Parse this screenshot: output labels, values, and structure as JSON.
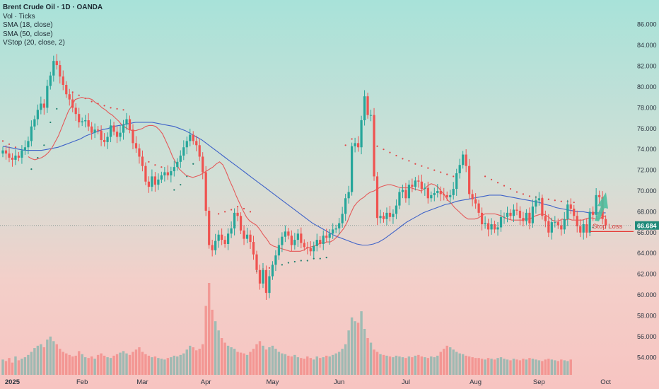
{
  "legend": {
    "title": "Brent Crude Oil · 1D · OANDA",
    "volume": "Vol · Ticks",
    "sma18": "SMA (18, close)",
    "sma50": "SMA (50, close)",
    "vstop": "VStop (20, close, 2)"
  },
  "colors": {
    "up": "#26a69a",
    "down": "#ef5350",
    "sma18": "#e45a5a",
    "sma50": "#3f63c8",
    "vstop_up": "#1e7f6e",
    "vstop_down": "#e04848",
    "stop_line": "#e53935",
    "price_badge": "#1f8a7a",
    "arrow": "#4dbfa0"
  },
  "chart_data": {
    "type": "candlestick",
    "symbol": "Brent Crude Oil",
    "timeframe": "1D",
    "exchange": "OANDA",
    "ylim": [
      53,
      87
    ],
    "y_ticks": [
      "54.000",
      "56.000",
      "58.000",
      "60.000",
      "62.000",
      "64.000",
      "66.000",
      "68.000",
      "70.000",
      "72.000",
      "74.000",
      "76.000",
      "78.000",
      "80.000",
      "82.000",
      "84.000",
      "86.000"
    ],
    "x_ticks": [
      {
        "label": "2025",
        "index": 3,
        "bold": true
      },
      {
        "label": "Feb",
        "index": 25
      },
      {
        "label": "Mar",
        "index": 44
      },
      {
        "label": "Apr",
        "index": 64
      },
      {
        "label": "May",
        "index": 85
      },
      {
        "label": "Jun",
        "index": 106
      },
      {
        "label": "Jul",
        "index": 127
      },
      {
        "label": "Aug",
        "index": 149
      },
      {
        "label": "Sep",
        "index": 169
      },
      {
        "label": "Oct",
        "index": 190
      }
    ],
    "last_price": "66.684",
    "stop_loss_label": "Stop Loss",
    "stop_loss_price": 66.1,
    "closes": [
      73.9,
      73.6,
      73.2,
      73.0,
      73.4,
      73.2,
      73.9,
      74.2,
      74.8,
      76.2,
      76.9,
      77.8,
      78.4,
      78.0,
      80.1,
      81.1,
      82.5,
      82.1,
      81.0,
      80.2,
      79.3,
      78.8,
      78.0,
      77.4,
      76.6,
      76.7,
      76.8,
      76.2,
      75.6,
      75.9,
      75.8,
      74.9,
      74.7,
      75.2,
      76.3,
      75.7,
      75.2,
      75.6,
      76.4,
      76.9,
      75.9,
      74.6,
      74.1,
      73.3,
      72.4,
      70.9,
      70.4,
      71.4,
      70.6,
      71.1,
      71.5,
      71.8,
      71.5,
      71.9,
      72.3,
      72.8,
      73.4,
      74.2,
      74.8,
      75.4,
      74.8,
      74.4,
      73.3,
      71.8,
      68.1,
      64.8,
      64.3,
      65.2,
      65.8,
      65.3,
      64.9,
      65.9,
      66.4,
      67.9,
      67.6,
      66.2,
      65.4,
      65.8,
      65.1,
      63.9,
      62.4,
      61.1,
      62.4,
      60.2,
      61.8,
      62.9,
      63.8,
      64.8,
      65.6,
      66.1,
      65.7,
      64.8,
      65.3,
      65.9,
      65.0,
      64.6,
      64.5,
      64.2,
      64.7,
      65.3,
      64.9,
      65.7,
      65.5,
      65.9,
      66.3,
      66.4,
      66.9,
      67.8,
      69.3,
      69.9,
      74.3,
      74.6,
      74.2,
      76.8,
      79.1,
      77.3,
      77.3,
      71.4,
      67.4,
      67.6,
      67.3,
      67.9,
      67.5,
      67.8,
      68.6,
      69.9,
      70.1,
      69.3,
      70.6,
      70.4,
      71.0,
      70.9,
      70.2,
      70.3,
      69.3,
      69.6,
      69.8,
      70.0,
      69.7,
      69.6,
      69.4,
      69.6,
      70.2,
      71.7,
      72.5,
      73.5,
      72.4,
      69.7,
      69.2,
      68.8,
      67.9,
      66.8,
      66.9,
      66.3,
      66.8,
      66.3,
      66.5,
      67.5,
      67.5,
      67.9,
      67.6,
      68.2,
      68.1,
      67.4,
      67.1,
      67.9,
      66.9,
      68.5,
      69.1,
      69.3,
      67.6,
      67.1,
      66.0,
      67.0,
      67.0,
      66.7,
      66.3,
      67.3,
      68.7,
      68.3,
      67.6,
      66.6,
      66.0,
      66.8,
      66.0,
      68.0,
      67.7,
      69.6,
      69.4,
      67.3,
      66.7
    ],
    "x_dates_note": "",
    "sma18": [
      73.3,
      73.1,
      73.0,
      73.1,
      73.2,
      73.4,
      73.7,
      74.1,
      74.7,
      75.3,
      76.1,
      76.9,
      77.7,
      78.2,
      78.8,
      78.9,
      79.0,
      78.9,
      78.9,
      78.8,
      78.5,
      78.3,
      78.0,
      77.8,
      77.5,
      77.3,
      77.0,
      76.7,
      76.3,
      76.1,
      75.9,
      75.8,
      75.8,
      75.9,
      76.0,
      76.2,
      76.3,
      76.3,
      76.2,
      75.9,
      75.5,
      74.8,
      74.1,
      73.3,
      72.7,
      72.1,
      71.8,
      71.5,
      71.4,
      71.3,
      71.4,
      71.5,
      71.7,
      71.9,
      72.1,
      72.3,
      72.6,
      72.8,
      72.5,
      71.8,
      71.0,
      70.3,
      69.5,
      68.8,
      68.1,
      67.5,
      67.1,
      66.9,
      66.7,
      66.3,
      65.8,
      65.4,
      64.9,
      64.7,
      64.6,
      64.5,
      64.4,
      64.3,
      64.2,
      64.2,
      64.2,
      64.2,
      64.3,
      64.5,
      64.6,
      64.7,
      64.8,
      65.0,
      65.0,
      65.1,
      65.1,
      65.3,
      65.6,
      66.0,
      66.4,
      67.0,
      67.8,
      68.5,
      68.9,
      69.2,
      69.4,
      69.7,
      69.9,
      70.0,
      70.2,
      70.4,
      70.5,
      70.6,
      70.6,
      70.5,
      70.4,
      70.3,
      70.3,
      70.3,
      70.3,
      70.2,
      70.1,
      70.0,
      70.2,
      70.5,
      70.7,
      70.6,
      70.4,
      70.0,
      69.6,
      69.1,
      68.8,
      68.4,
      68.1,
      67.8,
      67.5,
      67.3,
      67.3,
      67.3,
      67.4,
      67.6,
      67.8,
      67.8,
      67.8,
      67.8,
      67.7,
      67.6,
      67.4,
      67.3,
      67.2,
      67.2,
      67.2,
      67.2,
      67.3,
      67.3,
      67.4,
      67.6,
      67.7,
      67.8,
      67.7,
      67.5,
      67.2,
      67.1,
      67.1,
      67.3,
      67.2,
      67.3,
      67.2,
      67.2,
      67.2,
      67.2,
      67.3,
      67.4,
      67.4,
      67.3,
      67.3,
      67.5,
      67.6
    ],
    "sma50": [
      74.3,
      74.2,
      74.1,
      74.0,
      73.9,
      73.9,
      73.9,
      73.9,
      74.0,
      74.1,
      74.2,
      74.4,
      74.6,
      74.8,
      75.0,
      75.3,
      75.5,
      75.7,
      75.9,
      76.0,
      76.2,
      76.3,
      76.4,
      76.5,
      76.6,
      76.6,
      76.6,
      76.6,
      76.5,
      76.4,
      76.3,
      76.2,
      76.0,
      75.8,
      75.5,
      75.2,
      74.9,
      74.5,
      74.1,
      73.7,
      73.3,
      72.9,
      72.5,
      72.1,
      71.7,
      71.3,
      70.9,
      70.5,
      70.1,
      69.7,
      69.3,
      68.9,
      68.5,
      68.1,
      67.7,
      67.3,
      66.9,
      66.6,
      66.3,
      66.0,
      65.7,
      65.5,
      65.3,
      65.1,
      64.9,
      64.8,
      64.8,
      64.9,
      65.1,
      65.4,
      65.8,
      66.2,
      66.6,
      67.0,
      67.3,
      67.6,
      67.9,
      68.1,
      68.3,
      68.5,
      68.7,
      68.8,
      69.0,
      69.1,
      69.2,
      69.3,
      69.4,
      69.5,
      69.6,
      69.6,
      69.6,
      69.5,
      69.4,
      69.3,
      69.2,
      69.1,
      69.0,
      68.9,
      68.7,
      68.6,
      68.4,
      68.3,
      68.2,
      68.1,
      68.0,
      68.0,
      67.9,
      67.9,
      67.9,
      67.9
    ],
    "sma18_start": 8,
    "sma50_start": 0,
    "vstop": [
      {
        "i": 0,
        "v": 74.8
      },
      {
        "i": 2,
        "v": 74.5
      },
      {
        "i": 4,
        "v": 74.2
      },
      {
        "i": 9,
        "v": 72.1
      },
      {
        "i": 11,
        "v": 73.2
      },
      {
        "i": 13,
        "v": 74.4
      },
      {
        "i": 15,
        "v": 76.6
      },
      {
        "i": 17,
        "v": 77.9
      },
      {
        "i": 20,
        "v": 79.9
      },
      {
        "i": 22,
        "v": 79.5
      },
      {
        "i": 24,
        "v": 79.2
      },
      {
        "i": 26,
        "v": 78.9
      },
      {
        "i": 28,
        "v": 78.6
      },
      {
        "i": 30,
        "v": 78.4
      },
      {
        "i": 32,
        "v": 78.2
      },
      {
        "i": 34,
        "v": 78.0
      },
      {
        "i": 36,
        "v": 77.9
      },
      {
        "i": 38,
        "v": 77.8
      },
      {
        "i": 46,
        "v": 72.8
      },
      {
        "i": 48,
        "v": 72.5
      },
      {
        "i": 50,
        "v": 72.3
      },
      {
        "i": 54,
        "v": 70.1
      },
      {
        "i": 56,
        "v": 70.6
      },
      {
        "i": 58,
        "v": 71.4
      },
      {
        "i": 60,
        "v": 72.6
      },
      {
        "i": 68,
        "v": 67.8
      },
      {
        "i": 70,
        "v": 68.0
      },
      {
        "i": 72,
        "v": 68.2
      },
      {
        "i": 74,
        "v": 68.5
      },
      {
        "i": 76,
        "v": 68.3
      },
      {
        "i": 78,
        "v": 68.0
      },
      {
        "i": 80,
        "v": 62.3
      },
      {
        "i": 82,
        "v": 62.5
      },
      {
        "i": 84,
        "v": 62.6
      },
      {
        "i": 88,
        "v": 62.9
      },
      {
        "i": 90,
        "v": 63.1
      },
      {
        "i": 92,
        "v": 63.2
      },
      {
        "i": 94,
        "v": 63.3
      },
      {
        "i": 96,
        "v": 63.3
      },
      {
        "i": 98,
        "v": 63.5
      },
      {
        "i": 100,
        "v": 63.5
      },
      {
        "i": 102,
        "v": 63.6
      },
      {
        "i": 108,
        "v": 74.4
      },
      {
        "i": 110,
        "v": 75.0
      },
      {
        "i": 118,
        "v": 74.3
      },
      {
        "i": 120,
        "v": 74.0
      },
      {
        "i": 122,
        "v": 73.7
      },
      {
        "i": 124,
        "v": 73.4
      },
      {
        "i": 126,
        "v": 73.1
      },
      {
        "i": 128,
        "v": 72.9
      },
      {
        "i": 130,
        "v": 72.6
      },
      {
        "i": 132,
        "v": 72.4
      },
      {
        "i": 134,
        "v": 72.2
      },
      {
        "i": 136,
        "v": 72.0
      },
      {
        "i": 138,
        "v": 71.8
      },
      {
        "i": 140,
        "v": 71.6
      },
      {
        "i": 142,
        "v": 71.4
      },
      {
        "i": 152,
        "v": 71.4
      },
      {
        "i": 154,
        "v": 71.1
      },
      {
        "i": 156,
        "v": 70.8
      },
      {
        "i": 158,
        "v": 70.5
      },
      {
        "i": 160,
        "v": 70.2
      },
      {
        "i": 162,
        "v": 69.9
      },
      {
        "i": 164,
        "v": 69.7
      },
      {
        "i": 166,
        "v": 69.5
      },
      {
        "i": 168,
        "v": 69.4
      },
      {
        "i": 170,
        "v": 69.3
      },
      {
        "i": 172,
        "v": 69.2
      },
      {
        "i": 174,
        "v": 69.1
      },
      {
        "i": 176,
        "v": 69.0
      },
      {
        "i": 178,
        "v": 69.0
      },
      {
        "i": 180,
        "v": 68.9
      },
      {
        "i": 184,
        "v": 66.4
      },
      {
        "i": 186,
        "v": 66.5
      }
    ],
    "volume": [
      20,
      18,
      22,
      16,
      24,
      19,
      21,
      23,
      26,
      30,
      35,
      38,
      40,
      36,
      46,
      50,
      44,
      40,
      34,
      30,
      28,
      26,
      24,
      25,
      31,
      27,
      23,
      22,
      24,
      21,
      26,
      28,
      25,
      23,
      22,
      25,
      27,
      29,
      31,
      28,
      26,
      30,
      33,
      36,
      30,
      27,
      25,
      23,
      24,
      22,
      21,
      20,
      22,
      23,
      25,
      24,
      26,
      28,
      33,
      38,
      36,
      32,
      34,
      40,
      90,
      120,
      85,
      70,
      58,
      48,
      42,
      38,
      36,
      34,
      30,
      29,
      28,
      26,
      30,
      34,
      40,
      44,
      38,
      33,
      36,
      38,
      34,
      30,
      28,
      27,
      25,
      24,
      26,
      23,
      22,
      21,
      24,
      22,
      20,
      24,
      22,
      23,
      25,
      24,
      26,
      28,
      30,
      34,
      40,
      58,
      75,
      70,
      68,
      83,
      60,
      48,
      42,
      33,
      30,
      27,
      26,
      25,
      24,
      23,
      25,
      24,
      23,
      22,
      24,
      23,
      25,
      26,
      24,
      23,
      22,
      24,
      23,
      25,
      30,
      34,
      38,
      36,
      33,
      30,
      28,
      27,
      25,
      24,
      23,
      22,
      22,
      21,
      20,
      22,
      21,
      20,
      22,
      23,
      21,
      20,
      19,
      21,
      20,
      19,
      21,
      20,
      22,
      21,
      20,
      19,
      18,
      20,
      21,
      20,
      19,
      18,
      20,
      19,
      18,
      20
    ],
    "volume_scale_max": 120
  }
}
